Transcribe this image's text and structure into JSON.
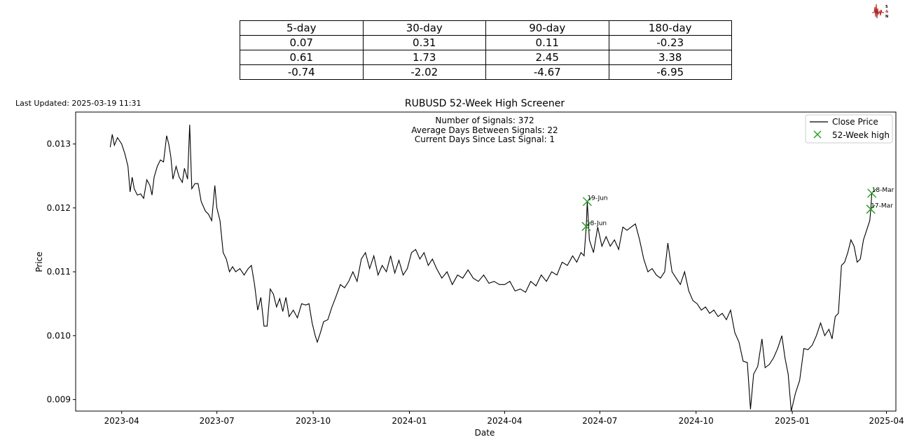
{
  "logo": {
    "text": "SIGNAL NOISE",
    "color": "#b22222"
  },
  "stats_table": {
    "headers": [
      "5-day",
      "30-day",
      "90-day",
      "180-day"
    ],
    "rows": [
      [
        "0.07",
        "0.31",
        "0.11",
        "-0.23"
      ],
      [
        "0.61",
        "1.73",
        "2.45",
        "3.38"
      ],
      [
        "-0.74",
        "-2.02",
        "-4.67",
        "-6.95"
      ]
    ]
  },
  "last_updated": "Last Updated: 2025-03-19 11:31",
  "chart_data": {
    "type": "line",
    "title": "RUBUSD 52-Week High Screener",
    "xlabel": "Date",
    "ylabel": "Price",
    "x_range": [
      "2023-02-16",
      "2025-04-10"
    ],
    "ylim": [
      0.00882,
      0.0135
    ],
    "x_ticks": [
      {
        "date": "2023-04-01",
        "label": "2023-04"
      },
      {
        "date": "2023-07-01",
        "label": "2023-07"
      },
      {
        "date": "2023-10-01",
        "label": "2023-10"
      },
      {
        "date": "2024-01-01",
        "label": "2024-01"
      },
      {
        "date": "2024-04-01",
        "label": "2024-04"
      },
      {
        "date": "2024-07-01",
        "label": "2024-07"
      },
      {
        "date": "2024-10-01",
        "label": "2024-10"
      },
      {
        "date": "2025-01-01",
        "label": "2025-01"
      },
      {
        "date": "2025-04-01",
        "label": "2025-04"
      }
    ],
    "y_ticks": [
      0.009,
      0.01,
      0.011,
      0.012,
      0.013
    ],
    "y_tick_labels": [
      "0.009",
      "0.010",
      "0.011",
      "0.012",
      "0.013"
    ],
    "annotations": [
      "Number of Signals: 372",
      "Average Days Between Signals: 22",
      "Current Days Since Last Signal: 1"
    ],
    "legend": {
      "position": "top-right",
      "entries": [
        "Close Price",
        "52-Week high"
      ]
    },
    "colors": {
      "line": "#000000",
      "marker": "#2ca02c"
    },
    "grid": false,
    "series": [
      {
        "name": "Close Price",
        "points": [
          [
            "2023-03-21",
            0.01295
          ],
          [
            "2023-03-23",
            0.01315
          ],
          [
            "2023-03-25",
            0.01298
          ],
          [
            "2023-03-28",
            0.0131
          ],
          [
            "2023-04-01",
            0.013
          ],
          [
            "2023-04-04",
            0.01285
          ],
          [
            "2023-04-07",
            0.01265
          ],
          [
            "2023-04-09",
            0.01225
          ],
          [
            "2023-04-11",
            0.01248
          ],
          [
            "2023-04-13",
            0.0123
          ],
          [
            "2023-04-16",
            0.0122
          ],
          [
            "2023-04-19",
            0.01222
          ],
          [
            "2023-04-22",
            0.01215
          ],
          [
            "2023-04-25",
            0.01244
          ],
          [
            "2023-04-28",
            0.01235
          ],
          [
            "2023-04-30",
            0.0122
          ],
          [
            "2023-05-02",
            0.01248
          ],
          [
            "2023-05-05",
            0.01265
          ],
          [
            "2023-05-08",
            0.01275
          ],
          [
            "2023-05-11",
            0.01272
          ],
          [
            "2023-05-14",
            0.01313
          ],
          [
            "2023-05-16",
            0.013
          ],
          [
            "2023-05-18",
            0.0128
          ],
          [
            "2023-05-20",
            0.01245
          ],
          [
            "2023-05-23",
            0.01265
          ],
          [
            "2023-05-26",
            0.01248
          ],
          [
            "2023-05-29",
            0.0124
          ],
          [
            "2023-05-31",
            0.01262
          ],
          [
            "2023-06-03",
            0.01245
          ],
          [
            "2023-06-05",
            0.0133
          ],
          [
            "2023-06-07",
            0.0123
          ],
          [
            "2023-06-10",
            0.01238
          ],
          [
            "2023-06-13",
            0.01238
          ],
          [
            "2023-06-16",
            0.0121
          ],
          [
            "2023-06-20",
            0.01195
          ],
          [
            "2023-06-23",
            0.0119
          ],
          [
            "2023-06-26",
            0.0118
          ],
          [
            "2023-06-29",
            0.01235
          ],
          [
            "2023-07-01",
            0.012
          ],
          [
            "2023-07-04",
            0.0118
          ],
          [
            "2023-07-07",
            0.0113
          ],
          [
            "2023-07-10",
            0.0112
          ],
          [
            "2023-07-13",
            0.011
          ],
          [
            "2023-07-16",
            0.01108
          ],
          [
            "2023-07-19",
            0.011
          ],
          [
            "2023-07-23",
            0.01105
          ],
          [
            "2023-07-27",
            0.01095
          ],
          [
            "2023-07-31",
            0.01105
          ],
          [
            "2023-08-03",
            0.0111
          ],
          [
            "2023-08-06",
            0.0108
          ],
          [
            "2023-08-09",
            0.0104
          ],
          [
            "2023-08-12",
            0.0106
          ],
          [
            "2023-08-15",
            0.01015
          ],
          [
            "2023-08-18",
            0.01015
          ],
          [
            "2023-08-21",
            0.01073
          ],
          [
            "2023-08-24",
            0.01065
          ],
          [
            "2023-08-27",
            0.01045
          ],
          [
            "2023-08-30",
            0.01058
          ],
          [
            "2023-09-02",
            0.01038
          ],
          [
            "2023-09-05",
            0.0106
          ],
          [
            "2023-09-08",
            0.0103
          ],
          [
            "2023-09-12",
            0.0104
          ],
          [
            "2023-09-16",
            0.01028
          ],
          [
            "2023-09-20",
            0.0105
          ],
          [
            "2023-09-24",
            0.01048
          ],
          [
            "2023-09-27",
            0.0105
          ],
          [
            "2023-09-30",
            0.0102
          ],
          [
            "2023-10-03",
            0.01
          ],
          [
            "2023-10-05",
            0.0099
          ],
          [
            "2023-10-08",
            0.01005
          ],
          [
            "2023-10-11",
            0.01022
          ],
          [
            "2023-10-15",
            0.01025
          ],
          [
            "2023-10-19",
            0.01045
          ],
          [
            "2023-10-23",
            0.01062
          ],
          [
            "2023-10-27",
            0.0108
          ],
          [
            "2023-10-31",
            0.01075
          ],
          [
            "2023-11-04",
            0.01085
          ],
          [
            "2023-11-08",
            0.011
          ],
          [
            "2023-11-12",
            0.01085
          ],
          [
            "2023-11-16",
            0.0112
          ],
          [
            "2023-11-20",
            0.0113
          ],
          [
            "2023-11-24",
            0.01105
          ],
          [
            "2023-11-28",
            0.01125
          ],
          [
            "2023-12-02",
            0.01095
          ],
          [
            "2023-12-06",
            0.0111
          ],
          [
            "2023-12-10",
            0.011
          ],
          [
            "2023-12-14",
            0.01125
          ],
          [
            "2023-12-18",
            0.01098
          ],
          [
            "2023-12-22",
            0.01118
          ],
          [
            "2023-12-26",
            0.01095
          ],
          [
            "2023-12-30",
            0.01105
          ],
          [
            "2024-01-03",
            0.0113
          ],
          [
            "2024-01-07",
            0.01135
          ],
          [
            "2024-01-11",
            0.0112
          ],
          [
            "2024-01-15",
            0.0113
          ],
          [
            "2024-01-19",
            0.0111
          ],
          [
            "2024-01-23",
            0.0112
          ],
          [
            "2024-01-27",
            0.01105
          ],
          [
            "2024-02-01",
            0.0109
          ],
          [
            "2024-02-06",
            0.011
          ],
          [
            "2024-02-11",
            0.0108
          ],
          [
            "2024-02-16",
            0.01095
          ],
          [
            "2024-02-21",
            0.0109
          ],
          [
            "2024-02-26",
            0.01103
          ],
          [
            "2024-03-02",
            0.0109
          ],
          [
            "2024-03-07",
            0.01085
          ],
          [
            "2024-03-12",
            0.01095
          ],
          [
            "2024-03-17",
            0.01082
          ],
          [
            "2024-03-22",
            0.01085
          ],
          [
            "2024-03-27",
            0.0108
          ],
          [
            "2024-04-01",
            0.0108
          ],
          [
            "2024-04-06",
            0.01085
          ],
          [
            "2024-04-11",
            0.0107
          ],
          [
            "2024-04-16",
            0.01073
          ],
          [
            "2024-04-21",
            0.01068
          ],
          [
            "2024-04-26",
            0.01085
          ],
          [
            "2024-05-01",
            0.01078
          ],
          [
            "2024-05-06",
            0.01095
          ],
          [
            "2024-05-11",
            0.01085
          ],
          [
            "2024-05-16",
            0.011
          ],
          [
            "2024-05-21",
            0.01095
          ],
          [
            "2024-05-26",
            0.01115
          ],
          [
            "2024-05-31",
            0.0111
          ],
          [
            "2024-06-05",
            0.01125
          ],
          [
            "2024-06-09",
            0.01115
          ],
          [
            "2024-06-13",
            0.0113
          ],
          [
            "2024-06-16",
            0.01125
          ],
          [
            "2024-06-18",
            0.0117
          ],
          [
            "2024-06-19",
            0.0121
          ],
          [
            "2024-06-21",
            0.0115
          ],
          [
            "2024-06-25",
            0.0113
          ],
          [
            "2024-06-29",
            0.0117
          ],
          [
            "2024-07-03",
            0.0114
          ],
          [
            "2024-07-07",
            0.01155
          ],
          [
            "2024-07-11",
            0.0114
          ],
          [
            "2024-07-15",
            0.0115
          ],
          [
            "2024-07-19",
            0.01135
          ],
          [
            "2024-07-23",
            0.0117
          ],
          [
            "2024-07-27",
            0.01165
          ],
          [
            "2024-07-31",
            0.0117
          ],
          [
            "2024-08-04",
            0.01175
          ],
          [
            "2024-08-08",
            0.0115
          ],
          [
            "2024-08-12",
            0.0112
          ],
          [
            "2024-08-16",
            0.011
          ],
          [
            "2024-08-20",
            0.01105
          ],
          [
            "2024-08-24",
            0.01095
          ],
          [
            "2024-08-28",
            0.0109
          ],
          [
            "2024-09-01",
            0.011
          ],
          [
            "2024-09-04",
            0.01145
          ],
          [
            "2024-09-08",
            0.011
          ],
          [
            "2024-09-12",
            0.0109
          ],
          [
            "2024-09-16",
            0.0108
          ],
          [
            "2024-09-20",
            0.011
          ],
          [
            "2024-09-24",
            0.0107
          ],
          [
            "2024-09-28",
            0.01055
          ],
          [
            "2024-10-02",
            0.0105
          ],
          [
            "2024-10-06",
            0.0104
          ],
          [
            "2024-10-10",
            0.01045
          ],
          [
            "2024-10-14",
            0.01035
          ],
          [
            "2024-10-18",
            0.0104
          ],
          [
            "2024-10-22",
            0.0103
          ],
          [
            "2024-10-26",
            0.01035
          ],
          [
            "2024-10-30",
            0.01025
          ],
          [
            "2024-11-03",
            0.0104
          ],
          [
            "2024-11-07",
            0.01005
          ],
          [
            "2024-11-11",
            0.0099
          ],
          [
            "2024-11-15",
            0.0096
          ],
          [
            "2024-11-19",
            0.00958
          ],
          [
            "2024-11-22",
            0.00885
          ],
          [
            "2024-11-25",
            0.0094
          ],
          [
            "2024-11-29",
            0.00952
          ],
          [
            "2024-12-03",
            0.00995
          ],
          [
            "2024-12-06",
            0.0095
          ],
          [
            "2024-12-10",
            0.00955
          ],
          [
            "2024-12-14",
            0.00965
          ],
          [
            "2024-12-18",
            0.0098
          ],
          [
            "2024-12-22",
            0.01
          ],
          [
            "2024-12-25",
            0.00965
          ],
          [
            "2024-12-28",
            0.0094
          ],
          [
            "2024-12-31",
            0.00882
          ],
          [
            "2025-01-04",
            0.0091
          ],
          [
            "2025-01-08",
            0.0093
          ],
          [
            "2025-01-12",
            0.0098
          ],
          [
            "2025-01-16",
            0.00978
          ],
          [
            "2025-01-20",
            0.00985
          ],
          [
            "2025-01-24",
            0.01
          ],
          [
            "2025-01-28",
            0.0102
          ],
          [
            "2025-02-01",
            0.01
          ],
          [
            "2025-02-05",
            0.0101
          ],
          [
            "2025-02-08",
            0.00995
          ],
          [
            "2025-02-11",
            0.0103
          ],
          [
            "2025-02-14",
            0.01035
          ],
          [
            "2025-02-17",
            0.0111
          ],
          [
            "2025-02-20",
            0.01115
          ],
          [
            "2025-02-23",
            0.0113
          ],
          [
            "2025-02-26",
            0.0115
          ],
          [
            "2025-03-01",
            0.0114
          ],
          [
            "2025-03-04",
            0.01115
          ],
          [
            "2025-03-07",
            0.0112
          ],
          [
            "2025-03-10",
            0.0115
          ],
          [
            "2025-03-13",
            0.01165
          ],
          [
            "2025-03-16",
            0.0118
          ],
          [
            "2025-03-17",
            0.01198
          ],
          [
            "2025-03-18",
            0.01223
          ]
        ]
      },
      {
        "name": "52-Week high",
        "points": [
          {
            "date": "2024-06-18",
            "value": 0.01171,
            "label": "18-Jun"
          },
          {
            "date": "2024-06-19",
            "value": 0.0121,
            "label": "19-Jun"
          },
          {
            "date": "2025-03-17",
            "value": 0.01198,
            "label": "17-Mar"
          },
          {
            "date": "2025-03-18",
            "value": 0.01223,
            "label": "18-Mar"
          }
        ]
      }
    ]
  }
}
